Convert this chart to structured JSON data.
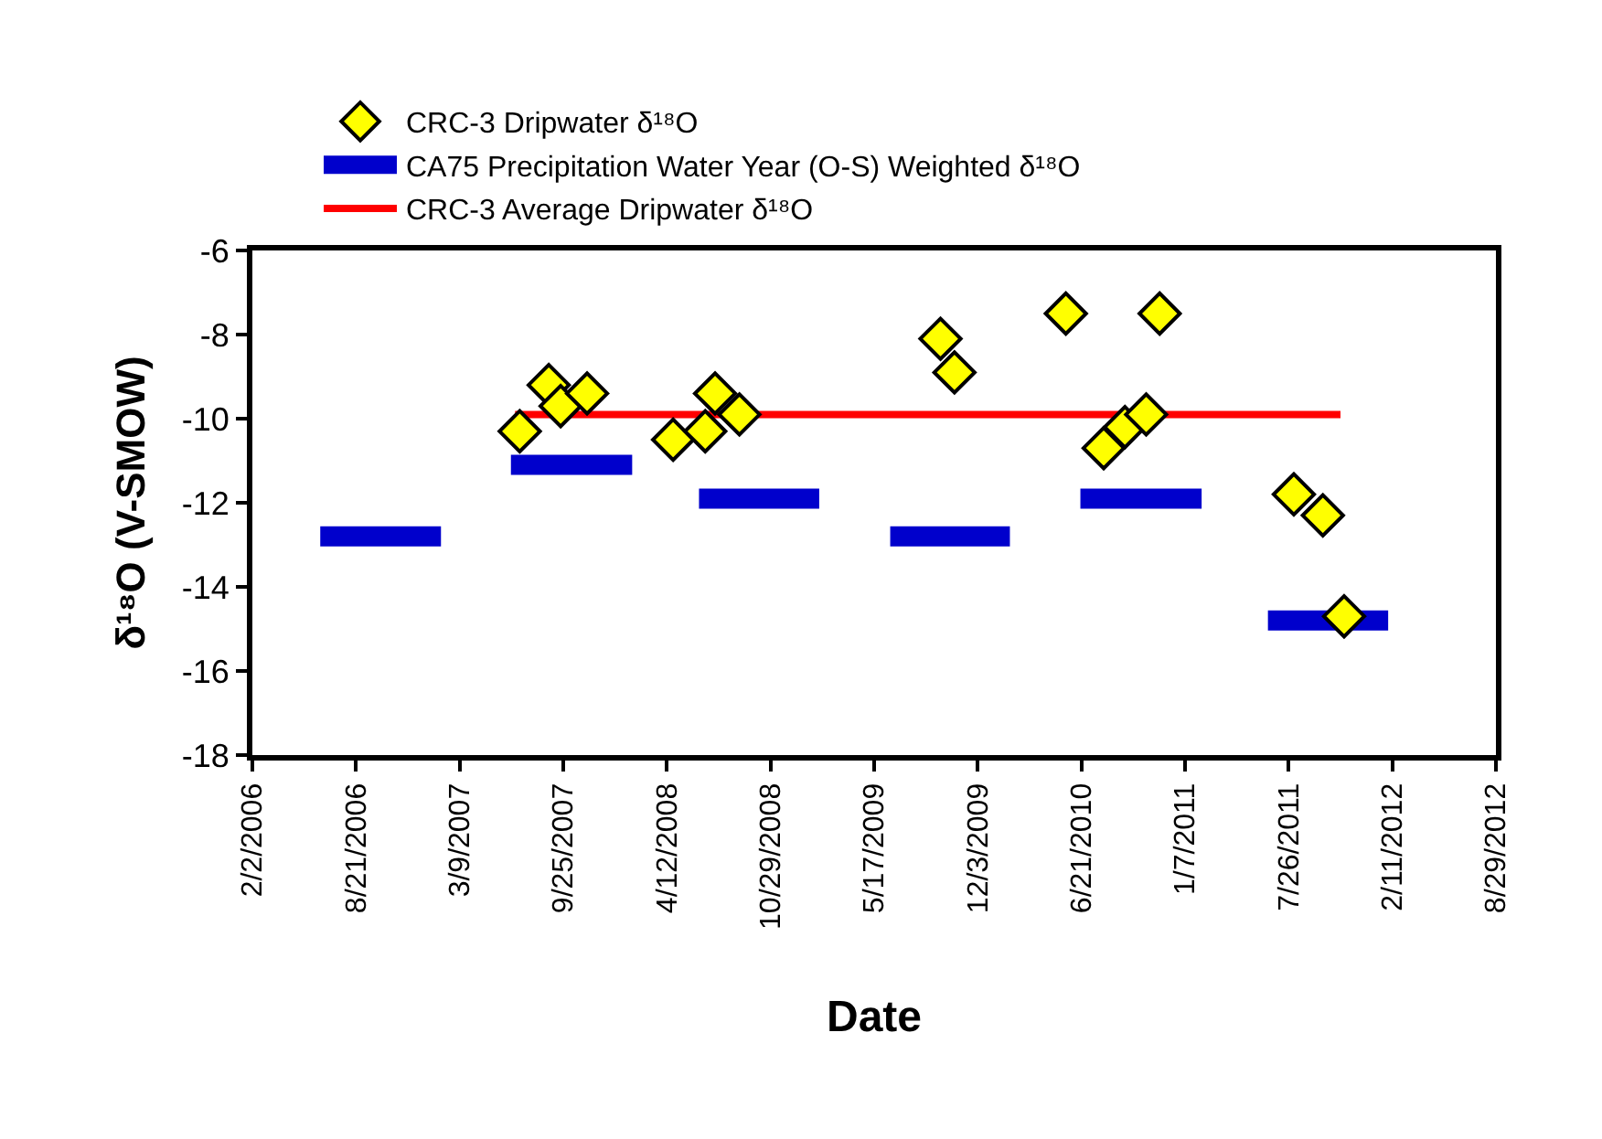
{
  "chart_data": {
    "type": "scatter",
    "xlabel": "Date",
    "ylabel": "δ¹⁸O (V-SMOW)",
    "legend": "top",
    "grid": false,
    "xlim": [
      "2006-02-02",
      "2012-08-29"
    ],
    "xticks": [
      {
        "value": "2006-02-02",
        "label": "2/2/2006"
      },
      {
        "value": "2006-08-21",
        "label": "8/21/2006"
      },
      {
        "value": "2007-03-09",
        "label": "3/9/2007"
      },
      {
        "value": "2007-09-25",
        "label": "9/25/2007"
      },
      {
        "value": "2008-04-12",
        "label": "4/12/2008"
      },
      {
        "value": "2008-10-29",
        "label": "10/29/2008"
      },
      {
        "value": "2009-05-17",
        "label": "5/17/2009"
      },
      {
        "value": "2009-12-03",
        "label": "12/3/2009"
      },
      {
        "value": "2010-06-21",
        "label": "6/21/2010"
      },
      {
        "value": "2011-01-07",
        "label": "1/7/2011"
      },
      {
        "value": "2011-07-26",
        "label": "7/26/2011"
      },
      {
        "value": "2012-02-11",
        "label": "2/11/2012"
      },
      {
        "value": "2012-08-29",
        "label": "8/29/2012"
      }
    ],
    "ylim": [
      -18,
      -6
    ],
    "yticks": [
      -18,
      -16,
      -14,
      -12,
      -10,
      -8,
      -6
    ],
    "series": [
      {
        "name": "CRC-3 Dripwater δ¹⁸O",
        "type": "scatter",
        "marker": "diamond",
        "color": "#ffff00",
        "x": [
          "2007-07-03",
          "2007-08-28",
          "2007-09-20",
          "2007-11-10",
          "2008-04-24",
          "2008-06-25",
          "2008-07-14",
          "2008-08-30",
          "2009-09-22",
          "2009-10-19",
          "2010-05-22",
          "2010-08-03",
          "2010-09-13",
          "2010-10-24",
          "2010-11-19",
          "2011-08-05",
          "2011-09-30",
          "2011-11-10"
        ],
        "values": [
          -10.3,
          -9.2,
          -9.7,
          -9.4,
          -10.5,
          -10.3,
          -9.4,
          -9.9,
          -8.1,
          -8.9,
          -7.5,
          -10.7,
          -10.2,
          -9.9,
          -7.5,
          -11.8,
          -12.3,
          -14.7
        ]
      },
      {
        "name": "CA75 Precipitation Water Year (O-S) Weighted δ¹⁸O",
        "type": "line",
        "line_style": "solid",
        "color": "#0000cc",
        "x": [
          "2006-06-13",
          "2007-02-01",
          "2007-04-01",
          "2007-06-16",
          "2008-02-05",
          "2008-04-01",
          "2008-06-13",
          "2009-01-31",
          "2009-04-01",
          "2009-06-17",
          "2010-02-03",
          "2010-04-01",
          "2010-06-19",
          "2011-02-08",
          "2011-04-01",
          "2011-06-16",
          "2012-02-03"
        ],
        "values": [
          -12.8,
          -12.8,
          null,
          -11.1,
          -11.1,
          null,
          -11.9,
          -11.9,
          null,
          -12.8,
          -12.8,
          null,
          -11.9,
          -11.9,
          null,
          -14.8,
          -14.8
        ]
      },
      {
        "name": "CRC-3 Average Dripwater δ¹⁸O",
        "type": "line",
        "line_style": "solid",
        "color": "#ff0000",
        "x": [
          "2007-06-24",
          "2011-11-03"
        ],
        "values": [
          -9.9,
          -9.9
        ]
      }
    ]
  }
}
